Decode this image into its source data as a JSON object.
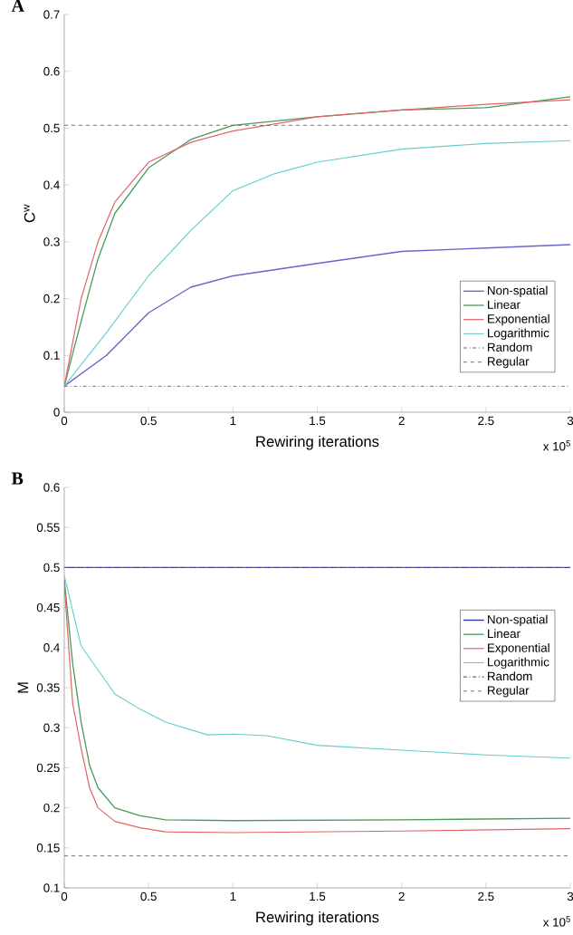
{
  "chart_data": [
    {
      "type": "line",
      "title": "A",
      "xlabel": "Rewiring iterations",
      "ylabel": "C$^{w}$",
      "annotations": [
        "x 10$^{5}$"
      ],
      "xlim": [
        0,
        3
      ],
      "ylim": [
        0,
        0.7
      ],
      "xticks": [
        0,
        0.5,
        1,
        1.5,
        2,
        2.5,
        3
      ],
      "yticks": [
        0,
        0.1,
        0.2,
        0.3,
        0.4,
        0.5,
        0.6,
        0.7
      ],
      "legend": "bottom right",
      "grid": false,
      "series": [
        {
          "name": "Non-spatial",
          "color": "#6666cc",
          "line_style": "solid",
          "x": [
            0,
            0.25,
            0.5,
            0.75,
            1,
            1.5,
            2,
            2.5,
            3
          ],
          "values": [
            0.046,
            0.1,
            0.175,
            0.22,
            0.24,
            0.262,
            0.283,
            0.289,
            0.295
          ]
        },
        {
          "name": "Linear",
          "color": "#4a9a5a",
          "line_style": "solid",
          "x": [
            0,
            0.1,
            0.2,
            0.3,
            0.5,
            0.75,
            1,
            1.5,
            2,
            2.5,
            3
          ],
          "values": [
            0.046,
            0.16,
            0.27,
            0.35,
            0.43,
            0.48,
            0.505,
            0.52,
            0.532,
            0.536,
            0.555
          ]
        },
        {
          "name": "Exponential",
          "color": "#e06666",
          "line_style": "solid",
          "x": [
            0,
            0.1,
            0.2,
            0.3,
            0.5,
            0.75,
            1,
            1.5,
            2,
            2.5,
            3
          ],
          "values": [
            0.046,
            0.2,
            0.3,
            0.37,
            0.44,
            0.475,
            0.495,
            0.52,
            0.532,
            0.542,
            0.55
          ]
        },
        {
          "name": "Logarithmic",
          "color": "#66cccc",
          "line_style": "solid",
          "x": [
            0,
            0.25,
            0.5,
            0.75,
            1,
            1.25,
            1.5,
            2,
            2.5,
            3
          ],
          "values": [
            0.046,
            0.14,
            0.24,
            0.32,
            0.39,
            0.42,
            0.44,
            0.463,
            0.473,
            0.478
          ]
        },
        {
          "name": "Random",
          "color": "#666666",
          "line_style": "dashdot",
          "x": [
            0,
            3
          ],
          "values": [
            0.046,
            0.046
          ]
        },
        {
          "name": "Regular",
          "color": "#666666",
          "line_style": "dashed",
          "x": [
            0,
            3
          ],
          "values": [
            0.505,
            0.505
          ]
        }
      ]
    },
    {
      "type": "line",
      "title": "B",
      "xlabel": "Rewiring iterations",
      "ylabel": "M",
      "annotations": [
        "x 10$^{5}$"
      ],
      "xlim": [
        0,
        3
      ],
      "ylim": [
        0.1,
        0.6
      ],
      "xticks": [
        0,
        0.5,
        1,
        1.5,
        2,
        2.5,
        3
      ],
      "yticks": [
        0.1,
        0.15,
        0.2,
        0.25,
        0.3,
        0.35,
        0.4,
        0.45,
        0.5,
        0.55,
        0.6
      ],
      "legend": "right",
      "grid": false,
      "series": [
        {
          "name": "Non-spatial",
          "color": "#3333aa",
          "line_style": "solid",
          "x": [
            0,
            3
          ],
          "values": [
            0.5,
            0.5
          ]
        },
        {
          "name": "Linear",
          "color": "#4a9a5a",
          "line_style": "solid",
          "x": [
            0,
            0.05,
            0.1,
            0.15,
            0.2,
            0.3,
            0.45,
            0.6,
            1,
            2,
            3
          ],
          "values": [
            0.485,
            0.38,
            0.307,
            0.253,
            0.225,
            0.2,
            0.19,
            0.185,
            0.184,
            0.185,
            0.187
          ]
        },
        {
          "name": "Exponential",
          "color": "#e06666",
          "line_style": "solid",
          "x": [
            0,
            0.05,
            0.1,
            0.15,
            0.2,
            0.3,
            0.45,
            0.6,
            1,
            2,
            3
          ],
          "values": [
            0.48,
            0.33,
            0.274,
            0.225,
            0.2,
            0.183,
            0.175,
            0.17,
            0.169,
            0.171,
            0.174
          ]
        },
        {
          "name": "Logarithmic",
          "color": "#66cccc",
          "line_style": "solid",
          "x": [
            0,
            0.1,
            0.2,
            0.3,
            0.45,
            0.6,
            0.85,
            1,
            1.2,
            1.5,
            2,
            2.5,
            3
          ],
          "values": [
            0.49,
            0.402,
            0.372,
            0.342,
            0.323,
            0.307,
            0.291,
            0.292,
            0.29,
            0.278,
            0.272,
            0.266,
            0.262
          ]
        },
        {
          "name": "Random",
          "color": "#666666",
          "line_style": "dashdot",
          "x": [
            0,
            3
          ],
          "values": [
            0.5,
            0.5
          ]
        },
        {
          "name": "Regular",
          "color": "#666666",
          "line_style": "dashed",
          "x": [
            0,
            3
          ],
          "values": [
            0.14,
            0.14
          ]
        }
      ]
    }
  ]
}
